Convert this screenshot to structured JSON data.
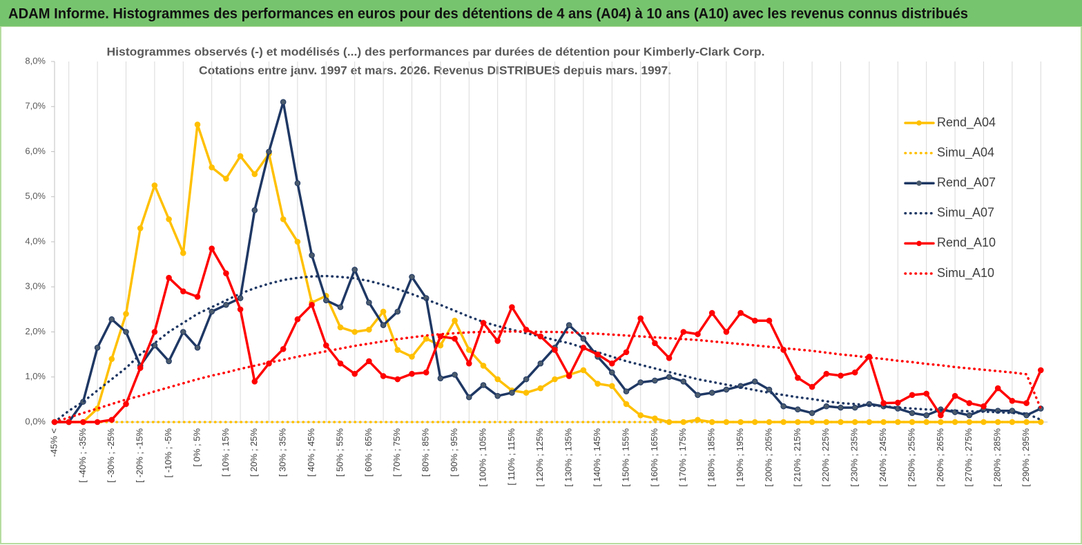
{
  "header": {
    "title": "ADAM Informe. Histogrammes des performances en euros pour des détentions de 4 ans (A04) à 10 ans (A10) avec les revenus connus distribués"
  },
  "chart_data": {
    "type": "line",
    "title": [
      "Histogrammes observés (-) et modélisés (...) des performances par durées de détention pour Kimberly-Clark Corp.",
      "Cotations entre janv. 1997 et mars. 2026. Revenus DISTRIBUES depuis mars. 1997."
    ],
    "categories": [
      "-45% <",
      null,
      "[ -40% ; -35%",
      null,
      "[ -30% ; -25%",
      null,
      "[ -20% ; -15%",
      null,
      "[ -10% ; -5%",
      null,
      "[ 0% ; 5%",
      null,
      "[ 10% ; 15%",
      null,
      "[ 20% ; 25%",
      null,
      "[ 30% ; 35%",
      null,
      "[ 40% ; 45%",
      null,
      "[ 50% ; 55%",
      null,
      "[ 60% ; 65%",
      null,
      "[ 70% ; 75%",
      null,
      "[ 80% ; 85%",
      null,
      "[ 90% ; 95%",
      null,
      "[ 100% ; 105%",
      null,
      "[ 110% ; 115%",
      null,
      "[ 120% ; 125%",
      null,
      "[ 130% ; 135%",
      null,
      "[ 140% ; 145%",
      null,
      "[ 150% ; 155%",
      null,
      "[ 160% ; 165%",
      null,
      "[ 170% ; 175%",
      null,
      "[ 180% ; 185%",
      null,
      "[ 190% ; 195%",
      null,
      "[ 200% ; 205%",
      null,
      "[ 210% ; 215%",
      null,
      "[ 220% ; 225%",
      null,
      "[ 230% ; 235%",
      null,
      "[ 240% ; 245%",
      null,
      "[ 250% ; 255%",
      null,
      "[ 260% ; 265%",
      null,
      "[ 270% ; 275%",
      null,
      "[ 280% ; 285%",
      null,
      "[ 290% ; 295%",
      null
    ],
    "ylim": [
      0,
      8
    ],
    "yticks": [
      {
        "value": 0,
        "label": "0,0%"
      },
      {
        "value": 1,
        "label": "1,0%"
      },
      {
        "value": 2,
        "label": "2,0%"
      },
      {
        "value": 3,
        "label": "3,0%"
      },
      {
        "value": 4,
        "label": "4,0%"
      },
      {
        "value": 5,
        "label": "5,0%"
      },
      {
        "value": 6,
        "label": "6,0%"
      },
      {
        "value": 7,
        "label": "7,0%"
      },
      {
        "value": 8,
        "label": "8,0%"
      }
    ],
    "series": [
      {
        "name": "Rend_A04",
        "color": "#ffc000",
        "style": "solid",
        "values": [
          0,
          0,
          0,
          0.3,
          1.4,
          2.4,
          4.3,
          5.25,
          4.5,
          3.75,
          6.6,
          5.65,
          5.4,
          5.9,
          5.5,
          5.95,
          4.5,
          4.0,
          2.65,
          2.8,
          2.1,
          2.0,
          2.05,
          2.45,
          1.6,
          1.45,
          1.85,
          1.7,
          2.25,
          1.6,
          1.25,
          0.95,
          0.7,
          0.65,
          0.75,
          0.95,
          1.05,
          1.15,
          0.85,
          0.8,
          0.4,
          0.15,
          0.08,
          0,
          0,
          0.05,
          0,
          0,
          0,
          0,
          0,
          0,
          0,
          0,
          0,
          0,
          0,
          0,
          0,
          0,
          0,
          0,
          0,
          0,
          0,
          0,
          0,
          0,
          0,
          0
        ]
      },
      {
        "name": "Simu_A04",
        "color": "#ffc000",
        "style": "dotted",
        "values": [
          0,
          0,
          0,
          0,
          0,
          0,
          0,
          0,
          0,
          0,
          0,
          0,
          0,
          0,
          0,
          0,
          0,
          0,
          0,
          0,
          0,
          0,
          0,
          0,
          0,
          0,
          0,
          0,
          0,
          0,
          0,
          0,
          0,
          0,
          0,
          0,
          0,
          0,
          0,
          0,
          0,
          0,
          0,
          0,
          0,
          0,
          0,
          0,
          0,
          0,
          0,
          0,
          0,
          0,
          0,
          0,
          0,
          0,
          0,
          0,
          0,
          0,
          0,
          0,
          0,
          0,
          0,
          0,
          0,
          0
        ]
      },
      {
        "name": "Rend_A07",
        "color": "#1f3864",
        "style": "solid",
        "values": [
          0,
          0,
          0.45,
          1.65,
          2.28,
          2.0,
          1.25,
          1.7,
          1.35,
          2.0,
          1.65,
          2.45,
          2.6,
          2.75,
          4.7,
          6.0,
          7.1,
          5.3,
          3.7,
          2.7,
          2.55,
          3.38,
          2.65,
          2.15,
          2.45,
          3.22,
          2.75,
          0.97,
          1.05,
          0.55,
          0.82,
          0.58,
          0.65,
          0.95,
          1.3,
          1.65,
          2.15,
          1.85,
          1.45,
          1.1,
          0.68,
          0.88,
          0.92,
          1.0,
          0.9,
          0.6,
          0.65,
          0.72,
          0.8,
          0.9,
          0.72,
          0.35,
          0.28,
          0.2,
          0.35,
          0.32,
          0.32,
          0.4,
          0.35,
          0.3,
          0.2,
          0.15,
          0.28,
          0.22,
          0.15,
          0.28,
          0.25,
          0.25,
          0.15,
          0.3
        ]
      },
      {
        "name": "Simu_A07",
        "color": "#1f3864",
        "style": "dotted",
        "values": [
          0,
          0.25,
          0.45,
          0.7,
          0.95,
          1.2,
          1.5,
          1.75,
          2.0,
          2.2,
          2.4,
          2.55,
          2.7,
          2.85,
          2.97,
          3.07,
          3.15,
          3.2,
          3.23,
          3.24,
          3.22,
          3.19,
          3.13,
          3.05,
          2.95,
          2.84,
          2.72,
          2.6,
          2.47,
          2.34,
          2.22,
          2.13,
          2.05,
          1.97,
          1.9,
          1.82,
          1.75,
          1.65,
          1.55,
          1.45,
          1.35,
          1.27,
          1.19,
          1.11,
          1.03,
          0.95,
          0.89,
          0.83,
          0.77,
          0.71,
          0.65,
          0.6,
          0.55,
          0.51,
          0.46,
          0.42,
          0.4,
          0.37,
          0.35,
          0.32,
          0.3,
          0.28,
          0.27,
          0.25,
          0.24,
          0.23,
          0.22,
          0.2,
          0.19,
          0.05
        ]
      },
      {
        "name": "Rend_A10",
        "color": "#ff0000",
        "style": "solid",
        "values": [
          0,
          0,
          0,
          0,
          0.05,
          0.4,
          1.2,
          2.0,
          3.2,
          2.9,
          2.78,
          3.85,
          3.3,
          2.5,
          0.9,
          1.3,
          1.62,
          2.28,
          2.6,
          1.7,
          1.3,
          1.07,
          1.35,
          1.02,
          0.95,
          1.07,
          1.1,
          1.9,
          1.85,
          1.3,
          2.2,
          1.8,
          2.55,
          2.05,
          1.9,
          1.6,
          1.02,
          1.65,
          1.5,
          1.3,
          1.55,
          2.3,
          1.75,
          1.42,
          2.0,
          1.95,
          2.42,
          2.0,
          2.42,
          2.25,
          2.25,
          1.6,
          0.98,
          0.78,
          1.07,
          1.03,
          1.1,
          1.45,
          0.42,
          0.43,
          0.6,
          0.63,
          0.15,
          0.58,
          0.42,
          0.35,
          0.75,
          0.47,
          0.42,
          1.15
        ]
      },
      {
        "name": "Simu_A10",
        "color": "#ff0000",
        "style": "dotted",
        "values": [
          0,
          0.1,
          0.2,
          0.3,
          0.4,
          0.5,
          0.58,
          0.68,
          0.77,
          0.86,
          0.95,
          1.03,
          1.1,
          1.18,
          1.25,
          1.32,
          1.38,
          1.45,
          1.51,
          1.57,
          1.63,
          1.69,
          1.74,
          1.79,
          1.84,
          1.88,
          1.92,
          1.95,
          1.97,
          1.99,
          2.0,
          2.01,
          2.01,
          2.01,
          2.0,
          2.0,
          1.99,
          1.97,
          1.96,
          1.94,
          1.92,
          1.9,
          1.88,
          1.86,
          1.84,
          1.82,
          1.79,
          1.76,
          1.73,
          1.7,
          1.67,
          1.64,
          1.61,
          1.58,
          1.54,
          1.5,
          1.47,
          1.43,
          1.4,
          1.36,
          1.33,
          1.29,
          1.26,
          1.22,
          1.19,
          1.16,
          1.13,
          1.1,
          1.06,
          0.3
        ]
      }
    ],
    "legend": "right"
  }
}
